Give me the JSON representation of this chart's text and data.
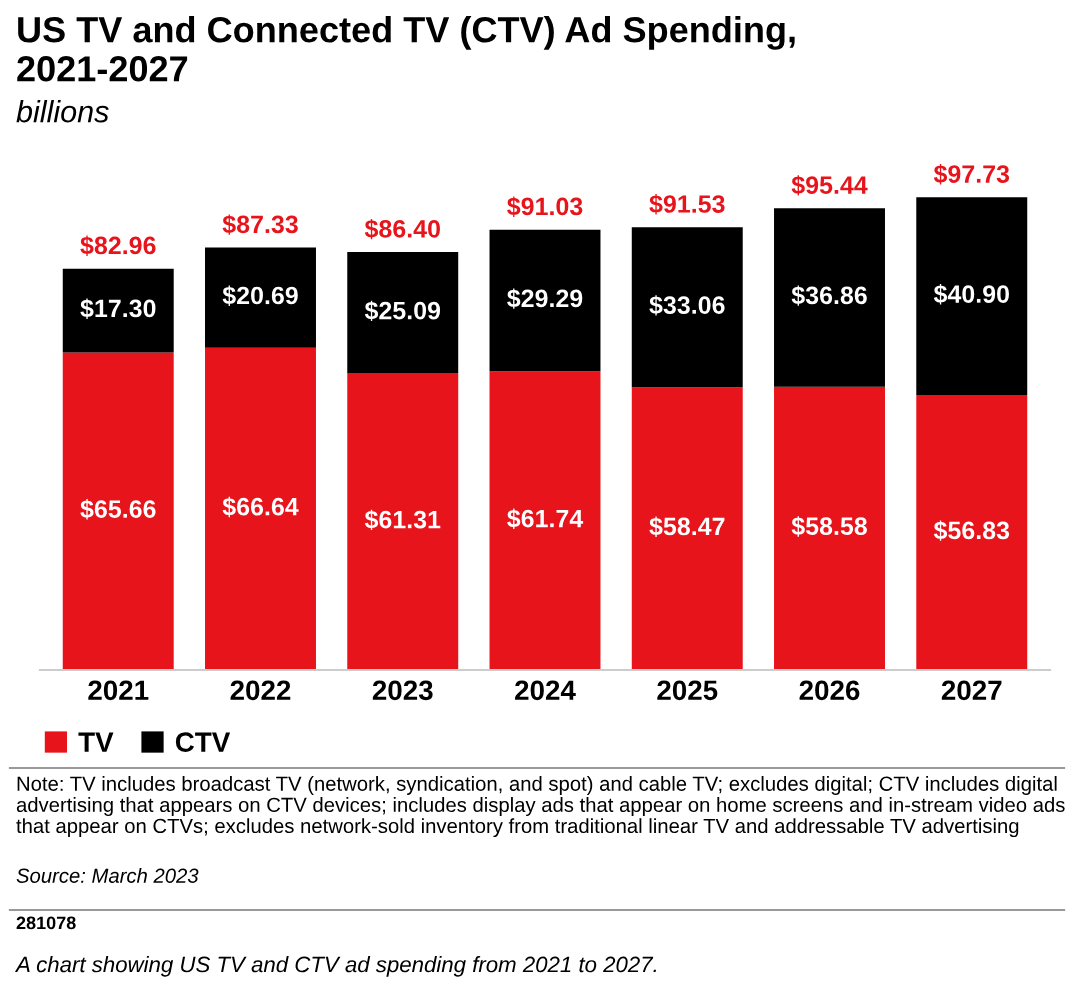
{
  "chart_data": {
    "type": "bar",
    "title": "US TV and Connected TV (CTV) Ad Spending,\n2021-2027",
    "subtitle": "billions",
    "categories": [
      "2021",
      "2022",
      "2023",
      "2024",
      "2025",
      "2026",
      "2027"
    ],
    "stacked": true,
    "legend": "bottom left",
    "series": [
      {
        "name": "TV",
        "color": "#e8141b",
        "values": [
          65.66,
          66.64,
          61.31,
          61.74,
          58.47,
          58.58,
          56.83
        ],
        "value_labels": [
          "$65.66",
          "$66.64",
          "$61.31",
          "$61.74",
          "$58.47",
          "$58.58",
          "$56.83"
        ]
      },
      {
        "name": "CTV",
        "color": "#000000",
        "values": [
          17.3,
          20.69,
          25.09,
          29.29,
          33.06,
          36.86,
          40.9
        ],
        "value_labels": [
          "$17.30",
          "$20.69",
          "$25.09",
          "$29.29",
          "$33.06",
          "$36.86",
          "$40.90"
        ]
      }
    ],
    "totals": [
      "$82.96",
      "$87.33",
      "$86.40",
      "$91.03",
      "$91.53",
      "$95.44",
      "$97.73"
    ],
    "annotations": [
      "Note: TV includes broadcast TV (network, syndication, and spot) and cable TV; excludes digital; CTV includes digital advertising that appears on CTV devices; includes display ads that appear on home screens and in-stream video ads that appear on CTVs; excludes network-sold inventory from traditional linear TV and addressable TV advertising",
      "Source: March 2023",
      "281078",
      "A chart showing US TV and CTV ad spending from 2021 to 2027."
    ]
  }
}
